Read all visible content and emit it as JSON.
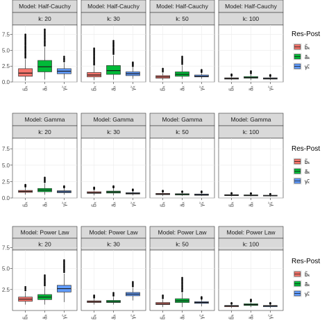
{
  "legend": {
    "title": "Res-Post",
    "entries": [
      "b̃ₖ",
      "ãₖ",
      "γ̃ₖ"
    ]
  },
  "colors": {
    "b": "#F8766D",
    "a": "#00BA38",
    "g": "#619CFF"
  },
  "chart_data": [
    {
      "type": "box",
      "model": "Model: Half-Cauchy",
      "ylim": [
        0,
        9
      ],
      "yticks": [
        0.0,
        2.5,
        5.0,
        7.5
      ],
      "ytick_labels": [
        "0.0",
        "2.5",
        "5.0",
        "7.5"
      ],
      "categories": [
        "b̃ₖ",
        "ãₖ",
        "γ̃ₖ"
      ],
      "facets": [
        {
          "k_label": "k: 20",
          "boxes": [
            {
              "whisker_low": 0.2,
              "q1": 0.9,
              "median": 1.4,
              "q3": 2.1,
              "whisker_high": 3.6,
              "outlier_max": 7.5
            },
            {
              "whisker_low": 0.4,
              "q1": 1.6,
              "median": 2.4,
              "q3": 3.4,
              "whisker_high": 5.5,
              "outlier_max": 8.3
            },
            {
              "whisker_low": 0.5,
              "q1": 1.3,
              "median": 1.7,
              "q3": 2.1,
              "whisker_high": 3.0,
              "outlier_max": 4.0
            }
          ]
        },
        {
          "k_label": "k: 30",
          "boxes": [
            {
              "whisker_low": 0.3,
              "q1": 0.8,
              "median": 1.1,
              "q3": 1.5,
              "whisker_high": 2.5,
              "outlier_max": 5.3
            },
            {
              "whisker_low": 0.4,
              "q1": 1.2,
              "median": 1.8,
              "q3": 2.6,
              "whisker_high": 4.2,
              "outlier_max": 6.5
            },
            {
              "whisker_low": 0.5,
              "q1": 1.0,
              "median": 1.3,
              "q3": 1.6,
              "whisker_high": 2.3,
              "outlier_max": 3.1
            }
          ]
        },
        {
          "k_label": "k: 50",
          "boxes": [
            {
              "whisker_low": 0.3,
              "q1": 0.6,
              "median": 0.8,
              "q3": 1.0,
              "whisker_high": 1.4,
              "outlier_max": 2.1
            },
            {
              "whisker_low": 0.5,
              "q1": 0.9,
              "median": 1.2,
              "q3": 1.6,
              "whisker_high": 2.6,
              "outlier_max": 4.0
            },
            {
              "whisker_low": 0.5,
              "q1": 0.8,
              "median": 0.9,
              "q3": 1.1,
              "whisker_high": 1.4,
              "outlier_max": 1.9
            }
          ]
        },
        {
          "k_label": "k: 100",
          "boxes": [
            {
              "whisker_low": 0.3,
              "q1": 0.45,
              "median": 0.55,
              "q3": 0.65,
              "whisker_high": 0.9,
              "outlier_max": 1.2
            },
            {
              "whisker_low": 0.3,
              "q1": 0.6,
              "median": 0.7,
              "q3": 0.85,
              "whisker_high": 1.2,
              "outlier_max": 1.7
            },
            {
              "whisker_low": 0.3,
              "q1": 0.45,
              "median": 0.55,
              "q3": 0.65,
              "whisker_high": 0.85,
              "outlier_max": 1.1
            }
          ]
        }
      ]
    },
    {
      "type": "box",
      "model": "Model: Gamma",
      "ylim": [
        0,
        9
      ],
      "yticks": [
        0.0,
        2.5,
        5.0,
        7.5
      ],
      "ytick_labels": [
        "0.0",
        "2.5",
        "5.0",
        "7.5"
      ],
      "categories": [
        "b̃ₖ",
        "ãₖ",
        "γ̃ₖ"
      ],
      "facets": [
        {
          "k_label": "k: 20",
          "boxes": [
            {
              "whisker_low": 0.5,
              "q1": 0.85,
              "median": 1.0,
              "q3": 1.15,
              "whisker_high": 1.6,
              "outlier_max": 2.0
            },
            {
              "whisker_low": 0.5,
              "q1": 0.95,
              "median": 1.2,
              "q3": 1.45,
              "whisker_high": 2.2,
              "outlier_max": 3.1
            },
            {
              "whisker_low": 0.5,
              "q1": 0.8,
              "median": 0.95,
              "q3": 1.1,
              "whisker_high": 1.5,
              "outlier_max": 1.8
            }
          ]
        },
        {
          "k_label": "k: 30",
          "boxes": [
            {
              "whisker_low": 0.4,
              "q1": 0.7,
              "median": 0.8,
              "q3": 0.95,
              "whisker_high": 1.25,
              "outlier_max": 1.6
            },
            {
              "whisker_low": 0.4,
              "q1": 0.75,
              "median": 0.9,
              "q3": 1.05,
              "whisker_high": 1.5,
              "outlier_max": 1.8
            },
            {
              "whisker_low": 0.4,
              "q1": 0.6,
              "median": 0.7,
              "q3": 0.8,
              "whisker_high": 1.05,
              "outlier_max": 1.3
            }
          ]
        },
        {
          "k_label": "k: 50",
          "boxes": [
            {
              "whisker_low": 0.3,
              "q1": 0.5,
              "median": 0.6,
              "q3": 0.7,
              "whisker_high": 0.9,
              "outlier_max": 1.1
            },
            {
              "whisker_low": 0.3,
              "q1": 0.45,
              "median": 0.55,
              "q3": 0.65,
              "whisker_high": 0.85,
              "outlier_max": 1.0
            },
            {
              "whisker_low": 0.3,
              "q1": 0.4,
              "median": 0.5,
              "q3": 0.6,
              "whisker_high": 0.8,
              "outlier_max": 1.0
            }
          ]
        },
        {
          "k_label": "k: 100",
          "boxes": [
            {
              "whisker_low": 0.25,
              "q1": 0.35,
              "median": 0.42,
              "q3": 0.5,
              "whisker_high": 0.62,
              "outlier_max": 0.75
            },
            {
              "whisker_low": 0.25,
              "q1": 0.33,
              "median": 0.4,
              "q3": 0.47,
              "whisker_high": 0.6,
              "outlier_max": 0.72
            },
            {
              "whisker_low": 0.2,
              "q1": 0.3,
              "median": 0.35,
              "q3": 0.42,
              "whisker_high": 0.52,
              "outlier_max": 0.62
            }
          ]
        }
      ]
    },
    {
      "type": "box",
      "model": "Model: Power Law",
      "ylim": [
        0,
        7.2
      ],
      "yticks": [
        2.5,
        5.0,
        7.5
      ],
      "ytick_labels": [
        "2.5",
        "5.0",
        "7.5"
      ],
      "categories": [
        "b̃ₖ",
        "ãₖ",
        "γ̃ₖ"
      ],
      "facets": [
        {
          "k_label": "k: 20",
          "boxes": [
            {
              "whisker_low": 0.7,
              "q1": 1.1,
              "median": 1.35,
              "q3": 1.6,
              "whisker_high": 2.2,
              "outlier_max": 2.8
            },
            {
              "whisker_low": 0.7,
              "q1": 1.3,
              "median": 1.6,
              "q3": 1.9,
              "whisker_high": 2.8,
              "outlier_max": 4.2
            },
            {
              "whisker_low": 1.0,
              "q1": 2.2,
              "median": 2.6,
              "q3": 3.0,
              "whisker_high": 4.4,
              "outlier_max": 6.0
            }
          ]
        },
        {
          "k_label": "k: 30",
          "boxes": [
            {
              "whisker_low": 0.7,
              "q1": 0.95,
              "median": 1.05,
              "q3": 1.15,
              "whisker_high": 1.4,
              "outlier_max": 1.8
            },
            {
              "whisker_low": 0.7,
              "q1": 0.95,
              "median": 1.05,
              "q3": 1.2,
              "whisker_high": 1.6,
              "outlier_max": 2.1
            },
            {
              "whisker_low": 1.2,
              "q1": 1.75,
              "median": 1.95,
              "q3": 2.15,
              "whisker_high": 2.7,
              "outlier_max": 3.4
            }
          ]
        },
        {
          "k_label": "k: 50",
          "boxes": [
            {
              "whisker_low": 0.4,
              "q1": 0.7,
              "median": 0.8,
              "q3": 0.95,
              "whisker_high": 1.3,
              "outlier_max": 1.8
            },
            {
              "whisker_low": 0.4,
              "q1": 0.95,
              "median": 1.15,
              "q3": 1.4,
              "whisker_high": 2.1,
              "outlier_max": 3.9
            },
            {
              "whisker_low": 0.5,
              "q1": 0.85,
              "median": 0.95,
              "q3": 1.05,
              "whisker_high": 1.3,
              "outlier_max": 1.6
            }
          ]
        },
        {
          "k_label": "k: 100",
          "boxes": [
            {
              "whisker_low": 0.3,
              "q1": 0.45,
              "median": 0.55,
              "q3": 0.6,
              "whisker_high": 0.75,
              "outlier_max": 0.9
            },
            {
              "whisker_low": 0.4,
              "q1": 0.6,
              "median": 0.7,
              "q3": 0.8,
              "whisker_high": 1.0,
              "outlier_max": 1.3
            },
            {
              "whisker_low": 0.3,
              "q1": 0.45,
              "median": 0.55,
              "q3": 0.6,
              "whisker_high": 0.75,
              "outlier_max": 0.9
            }
          ]
        }
      ]
    }
  ]
}
